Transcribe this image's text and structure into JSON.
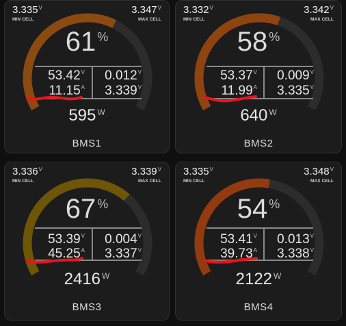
{
  "labels": {
    "min_cell": "MIN CELL",
    "max_cell": "MAX CELL"
  },
  "units": {
    "volt": "V",
    "amp": "A",
    "watt": "W",
    "percent": "%"
  },
  "colors": {
    "track": "#2c2c2c",
    "annotation": "#e8141b",
    "divider": "#8a8a8a"
  },
  "cards": [
    {
      "name": "BMS1",
      "min_cell": "3.335",
      "max_cell": "3.347",
      "soc": "61",
      "soc_value": 61,
      "voltage": "53.42",
      "current": "11.15",
      "cell_diff": "0.012",
      "avg_cell": "3.339",
      "power": "595",
      "arc_color": "#8a4a10"
    },
    {
      "name": "BMS2",
      "min_cell": "3.332",
      "max_cell": "3.342",
      "soc": "58",
      "soc_value": 58,
      "voltage": "53.37",
      "current": "11.99",
      "cell_diff": "0.009",
      "avg_cell": "3.335",
      "power": "640",
      "arc_color": "#8f4410"
    },
    {
      "name": "BMS3",
      "min_cell": "3.336",
      "max_cell": "3.339",
      "soc": "67",
      "soc_value": 67,
      "voltage": "53.39",
      "current": "45.25",
      "cell_diff": "0.004",
      "avg_cell": "3.337",
      "power": "2416",
      "arc_color": "#6e5606"
    },
    {
      "name": "BMS4",
      "min_cell": "3.335",
      "max_cell": "3.348",
      "soc": "54",
      "soc_value": 54,
      "voltage": "53.41",
      "current": "39.73",
      "cell_diff": "0.013",
      "avg_cell": "3.338",
      "power": "2122",
      "arc_color": "#933a0e"
    }
  ]
}
